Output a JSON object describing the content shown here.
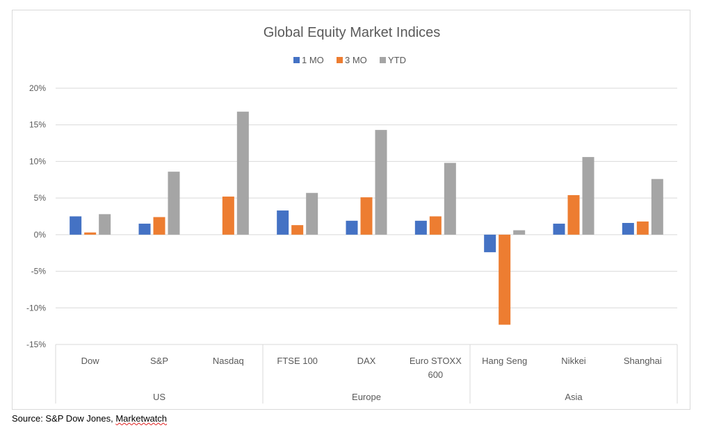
{
  "chart_data": {
    "type": "bar",
    "title": "Global Equity Market Indices",
    "categories": [
      "Dow",
      "S&P",
      "Nasdaq",
      "FTSE 100",
      "DAX",
      "Euro STOXX 600",
      "Hang Seng",
      "Nikkei",
      "Shanghai"
    ],
    "category_lines": [
      [
        "Dow"
      ],
      [
        "S&P"
      ],
      [
        "Nasdaq"
      ],
      [
        "FTSE 100"
      ],
      [
        "DAX"
      ],
      [
        "Euro STOXX",
        "600"
      ],
      [
        "Hang Seng"
      ],
      [
        "Nikkei"
      ],
      [
        "Shanghai"
      ]
    ],
    "groups": [
      {
        "label": "US",
        "count": 3
      },
      {
        "label": "Europe",
        "count": 3
      },
      {
        "label": "Asia",
        "count": 3
      }
    ],
    "series": [
      {
        "name": "1 MO",
        "color": "#4472C4",
        "values": [
          2.5,
          1.5,
          0.0,
          3.3,
          1.9,
          1.9,
          -2.4,
          1.5,
          1.6
        ]
      },
      {
        "name": "3 MO",
        "color": "#ED7D31",
        "values": [
          0.3,
          2.4,
          5.2,
          1.3,
          5.1,
          2.5,
          -12.3,
          5.4,
          1.8
        ]
      },
      {
        "name": "YTD",
        "color": "#A5A5A5",
        "values": [
          2.8,
          8.6,
          16.8,
          5.7,
          14.3,
          9.8,
          0.6,
          10.6,
          7.6
        ]
      }
    ],
    "ylim": [
      -15,
      20
    ],
    "yticks": [
      -15,
      -10,
      -5,
      0,
      5,
      10,
      15,
      20
    ],
    "ytick_labels": [
      "-15%",
      "-10%",
      "-5%",
      "0%",
      "5%",
      "10%",
      "15%",
      "20%"
    ],
    "grid": true,
    "legend_position": "top"
  },
  "source": {
    "prefix": "Source: S&P Dow Jones, ",
    "link": "Marketwatch"
  }
}
